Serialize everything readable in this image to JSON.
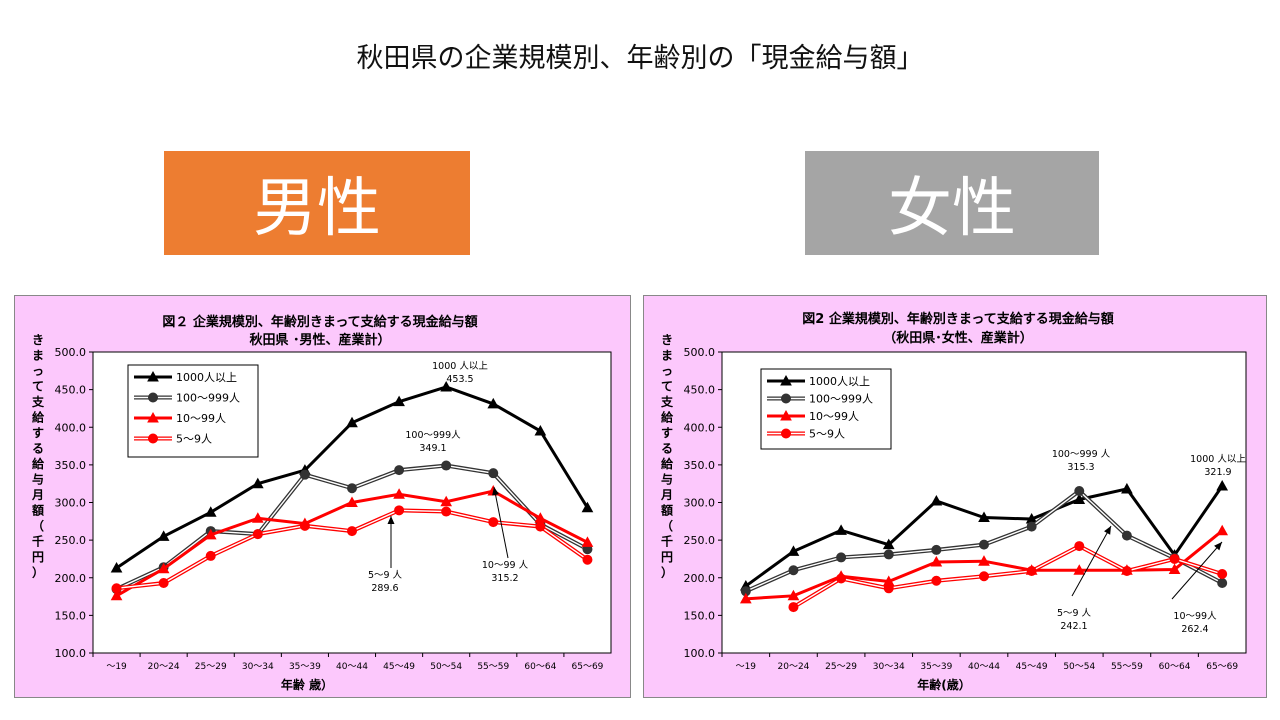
{
  "page": {
    "title": "秋田県の企業規模別、年齢別の「現金給与額」",
    "male_label": "男性",
    "female_label": "女性",
    "colors": {
      "male_box": "#ED7D31",
      "female_box": "#A5A5A5",
      "panel_bg": "#FCC8FC"
    }
  },
  "chart_data": [
    {
      "type": "line",
      "title": "図２ 企業規模別、年齢別きまって支給する現金給与額",
      "subtitle": "秋田県 ･男性、産業計）",
      "ylabel": "きまって支給する給与月額（千円）",
      "xlabel": "年齢 歳）",
      "ylim": [
        100,
        500
      ],
      "yticks": [
        "500.0",
        "450.0",
        "400.0",
        "350.0",
        "300.0",
        "250.0",
        "200.0",
        "150.0",
        "100.0"
      ],
      "categories": [
        "～19",
        "20～24",
        "25～29",
        "30～34",
        "35～39",
        "40～44",
        "45～49",
        "50～54",
        "55～59",
        "60～64",
        "65～69"
      ],
      "legend_position": "top-left",
      "series": [
        {
          "name": "1000人以上",
          "color": "#000000",
          "marker": "triangle",
          "style": "solid",
          "values": [
            213,
            255,
            287,
            325,
            343,
            406,
            434,
            453.5,
            431,
            395,
            293
          ]
        },
        {
          "name": "100～999人",
          "color": "#333333",
          "marker": "circle",
          "style": "double",
          "values": [
            185,
            214,
            262,
            258,
            337,
            319,
            343,
            349.1,
            339,
            271,
            238
          ]
        },
        {
          "name": "10～99人",
          "color": "#ff0000",
          "marker": "triangle",
          "style": "solid",
          "values": [
            176,
            212,
            257,
            279,
            272,
            300,
            311,
            301,
            315.2,
            279,
            247
          ]
        },
        {
          "name": "5～9人",
          "color": "#ff0000",
          "marker": "circle",
          "style": "double",
          "values": [
            186,
            193,
            229,
            258,
            269,
            262,
            289.6,
            288,
            274,
            268,
            224
          ]
        }
      ],
      "annotations": [
        {
          "lines": [
            "1000 人以上",
            "453.5"
          ]
        },
        {
          "lines": [
            "100～999人",
            "349.1"
          ]
        },
        {
          "lines": [
            "5～9 人",
            "289.6"
          ]
        },
        {
          "lines": [
            "10～99 人",
            "315.2"
          ]
        }
      ]
    },
    {
      "type": "line",
      "title": "図2 企業規模別、年齢別きまって支給する現金給与額",
      "subtitle": "（秋田県･女性、産業計）",
      "ylabel": "きまって支給する給与月額（千円）",
      "xlabel": "年齢(歳）",
      "ylim": [
        100,
        500
      ],
      "yticks": [
        "500.0",
        "450.0",
        "400.0",
        "350.0",
        "300.0",
        "250.0",
        "200.0",
        "150.0",
        "100.0"
      ],
      "categories": [
        "～19",
        "20～24",
        "25～29",
        "30～34",
        "35～39",
        "40～44",
        "45～49",
        "50～54",
        "55～59",
        "60～64",
        "65～69"
      ],
      "legend_position": "top-left",
      "series": [
        {
          "name": "1000人以上",
          "color": "#000000",
          "marker": "triangle",
          "style": "solid",
          "values": [
            189,
            235,
            263,
            244,
            302,
            280,
            278,
            304,
            318,
            230,
            321.9
          ]
        },
        {
          "name": "100～999人",
          "color": "#333333",
          "marker": "circle",
          "style": "double",
          "values": [
            182,
            210,
            227,
            231,
            237,
            244,
            268,
            315.3,
            256,
            226,
            193
          ]
        },
        {
          "name": "10～99人",
          "color": "#ff0000",
          "marker": "triangle",
          "style": "solid",
          "values": [
            172,
            176,
            202,
            195,
            221,
            222,
            210,
            210,
            210,
            211,
            262.4
          ]
        },
        {
          "name": "5～9人",
          "color": "#ff0000",
          "marker": "circle",
          "style": "double",
          "values": [
            null,
            161,
            199,
            186,
            196,
            202,
            209,
            242.1,
            209,
            225,
            205
          ]
        }
      ],
      "annotations": [
        {
          "lines": [
            "100～999 人",
            "315.3"
          ]
        },
        {
          "lines": [
            "1000 人以上",
            "321.9"
          ]
        },
        {
          "lines": [
            "5～9 人",
            "242.1"
          ]
        },
        {
          "lines": [
            "10～99人",
            "262.4"
          ]
        }
      ]
    }
  ]
}
